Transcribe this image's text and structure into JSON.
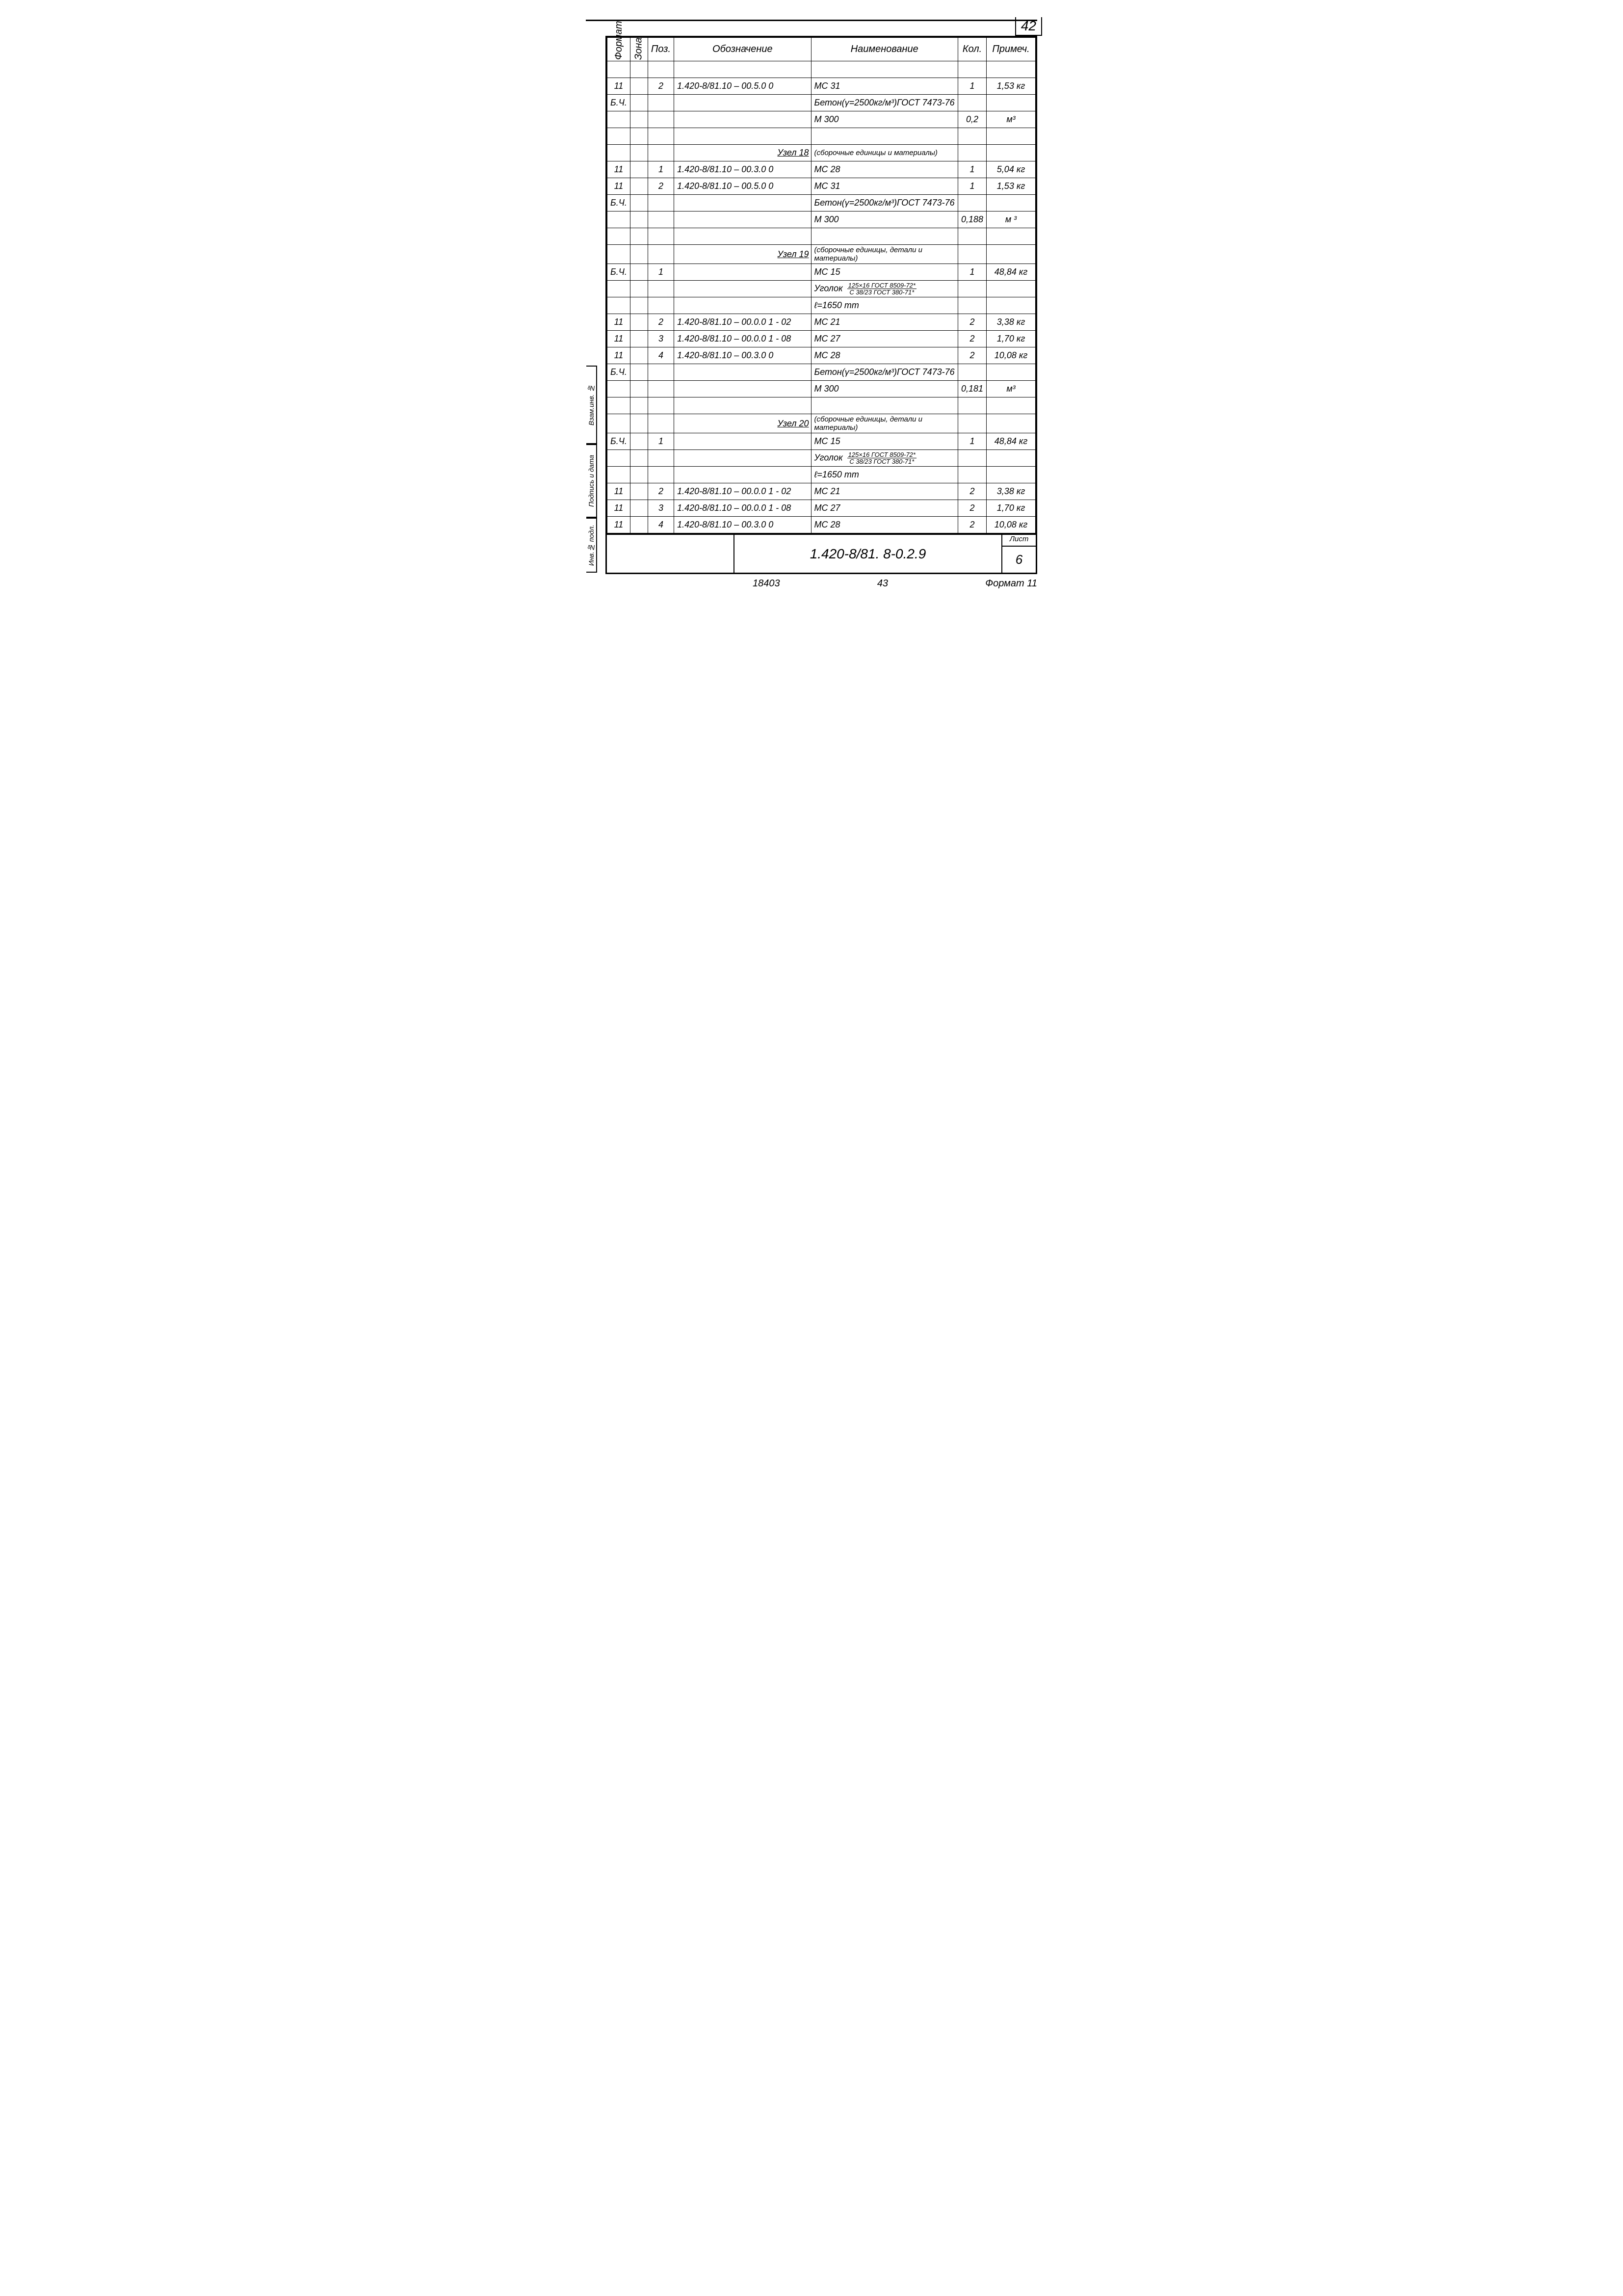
{
  "page_number": "42",
  "headers": {
    "format": "Формат",
    "zone": "Зона",
    "pos": "Поз.",
    "designation": "Обозначение",
    "name": "Наименование",
    "qty": "Кол.",
    "note": "Примеч."
  },
  "rows": [
    {
      "type": "blank"
    },
    {
      "type": "item",
      "format": "11",
      "zone": "",
      "pos": "2",
      "desig": "1.420-8/81.10   –   00.5.0 0",
      "name": "МС 31",
      "qty": "1",
      "note": "1,53 кг"
    },
    {
      "type": "item",
      "format": "Б.Ч.",
      "zone": "",
      "pos": "",
      "desig": "",
      "name": "Бетон(γ=2500кг/м³)ГОСТ 7473-76",
      "qty": "",
      "note": ""
    },
    {
      "type": "item",
      "format": "",
      "zone": "",
      "pos": "",
      "desig": "",
      "name": "М 300",
      "qty": "0,2",
      "note": "м³"
    },
    {
      "type": "blank"
    },
    {
      "type": "section",
      "desig": "Узел 18",
      "name": "(сборочные единицы и материалы)"
    },
    {
      "type": "item",
      "format": "11",
      "zone": "",
      "pos": "1",
      "desig": "1.420-8/81.10   –   00.3.0 0",
      "name": "МС 28",
      "qty": "1",
      "note": "5,04 кг"
    },
    {
      "type": "item",
      "format": "11",
      "zone": "",
      "pos": "2",
      "desig": "1.420-8/81.10   –   00.5.0 0",
      "name": "МС 31",
      "qty": "1",
      "note": "1,53 кг"
    },
    {
      "type": "item",
      "format": "Б.Ч.",
      "zone": "",
      "pos": "",
      "desig": "",
      "name": "Бетон(γ=2500кг/м³)ГОСТ 7473-76",
      "qty": "",
      "note": ""
    },
    {
      "type": "item",
      "format": "",
      "zone": "",
      "pos": "",
      "desig": "",
      "name": "М 300",
      "qty": "0,188",
      "note": "м ³"
    },
    {
      "type": "blank"
    },
    {
      "type": "section",
      "desig": "Узел 19",
      "name": "(сборочные единицы, детали и материалы)"
    },
    {
      "type": "item",
      "format": "Б.Ч.",
      "zone": "",
      "pos": "1",
      "desig": "",
      "name": "МС 15",
      "qty": "1",
      "note": "48,84 кг"
    },
    {
      "type": "ugolok",
      "format": "",
      "zone": "",
      "pos": "",
      "label": "Уголок",
      "num": "125×16 ГОСТ 8509-72*",
      "den": "С 38/23 ГОСТ 380-71*"
    },
    {
      "type": "item",
      "format": "",
      "zone": "",
      "pos": "",
      "desig": "",
      "name": "ℓ=1650 mm",
      "qty": "",
      "note": ""
    },
    {
      "type": "item",
      "format": "11",
      "zone": "",
      "pos": "2",
      "desig": "1.420-8/81.10   –   00.0.0 1 - 02",
      "name": "МС 21",
      "qty": "2",
      "note": "3,38 кг"
    },
    {
      "type": "item",
      "format": "11",
      "zone": "",
      "pos": "3",
      "desig": "1.420-8/81.10   –   00.0.0 1 - 08",
      "name": "МС 27",
      "qty": "2",
      "note": "1,70 кг"
    },
    {
      "type": "item",
      "format": "11",
      "zone": "",
      "pos": "4",
      "desig": "1.420-8/81.10   –   00.3.0 0",
      "name": "МС 28",
      "qty": "2",
      "note": "10,08 кг"
    },
    {
      "type": "item",
      "format": "Б.Ч.",
      "zone": "",
      "pos": "",
      "desig": "",
      "name": "Бетон(γ=2500кг/м³)ГОСТ 7473-76",
      "qty": "",
      "note": ""
    },
    {
      "type": "item",
      "format": "",
      "zone": "",
      "pos": "",
      "desig": "",
      "name": "М 300",
      "qty": "0,181",
      "note": "м³"
    },
    {
      "type": "blank"
    },
    {
      "type": "section",
      "desig": "Узел 20",
      "name": "(сборочные единицы, детали и материалы)"
    },
    {
      "type": "item",
      "format": "Б.Ч.",
      "zone": "",
      "pos": "1",
      "desig": "",
      "name": "МС 15",
      "qty": "1",
      "note": "48,84 кг"
    },
    {
      "type": "ugolok",
      "format": "",
      "zone": "",
      "pos": "",
      "label": "Уголок",
      "num": "125×16 ГОСТ 8509-72*",
      "den": "С 38/23 ГОСТ 380-71*"
    },
    {
      "type": "item",
      "format": "",
      "zone": "",
      "pos": "",
      "desig": "",
      "name": "ℓ=1650 mm",
      "qty": "",
      "note": ""
    },
    {
      "type": "item",
      "format": "11",
      "zone": "",
      "pos": "2",
      "desig": "1.420-8/81.10   –   00.0.0 1 - 02",
      "name": "МС 21",
      "qty": "2",
      "note": "3,38 кг"
    },
    {
      "type": "item",
      "format": "11",
      "zone": "",
      "pos": "3",
      "desig": "1.420-8/81.10   – 00.0.0 1 - 08",
      "name": "МС 27",
      "qty": "2",
      "note": "1,70 кг"
    },
    {
      "type": "item",
      "format": "11",
      "zone": "",
      "pos": "4",
      "desig": "1.420-8/81.10   –   00.3.0 0",
      "name": "МС 28",
      "qty": "2",
      "note": "10,08 кг"
    }
  ],
  "side_labels": [
    "Взам.инв. №",
    "Подпись и дата",
    "Инв.№ подл."
  ],
  "side_heights": [
    160,
    150,
    112
  ],
  "title_block": {
    "doc_number": "1.420-8/81. 8-0.2.9",
    "sheet_label": "Лист",
    "sheet_value": "6"
  },
  "footer": {
    "code1": "18403",
    "code2": "43",
    "format": "Формат 11"
  }
}
